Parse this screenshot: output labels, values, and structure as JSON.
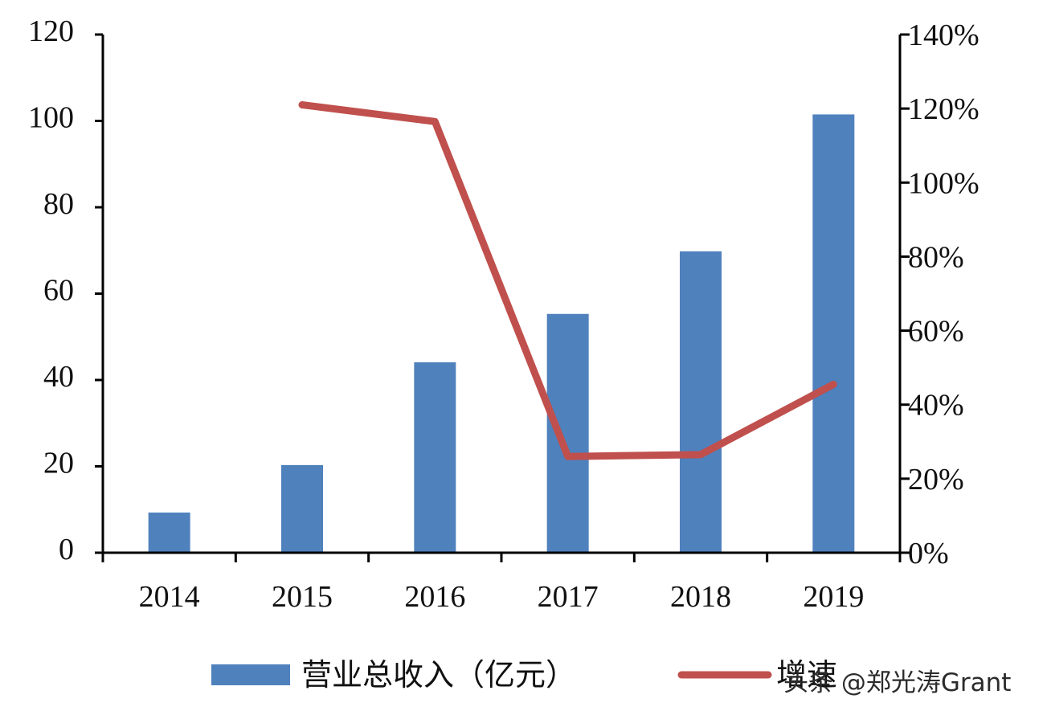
{
  "chart_data": {
    "type": "bar",
    "categories": [
      "2014",
      "2015",
      "2016",
      "2017",
      "2018",
      "2019"
    ],
    "series": [
      {
        "name": "营业总收入（亿元）",
        "type": "bar",
        "axis": "left",
        "color": "#4f81bd",
        "values": [
          9.3,
          20.3,
          44.1,
          55.3,
          69.8,
          101.5
        ]
      },
      {
        "name": "增速",
        "type": "line",
        "axis": "right",
        "color": "#c0504d",
        "values": [
          null,
          1.21,
          1.165,
          0.26,
          0.265,
          0.455
        ]
      }
    ],
    "left_axis": {
      "min": 0,
      "max": 120,
      "ticks": [
        0,
        20,
        40,
        60,
        80,
        100,
        120
      ],
      "tick_labels": [
        "0",
        "20",
        "40",
        "60",
        "80",
        "100",
        "120"
      ]
    },
    "right_axis": {
      "min": 0,
      "max": 1.4,
      "ticks": [
        0,
        0.2,
        0.4,
        0.6,
        0.8,
        1.0,
        1.2,
        1.4
      ],
      "tick_labels": [
        "0%",
        "20%",
        "40%",
        "60%",
        "80%",
        "100%",
        "120%",
        "140%"
      ]
    },
    "grid": false,
    "legend_position": "bottom",
    "legend": [
      "营业总收入（亿元）",
      "增速"
    ]
  },
  "watermark": "头条 @郑光涛Grant"
}
